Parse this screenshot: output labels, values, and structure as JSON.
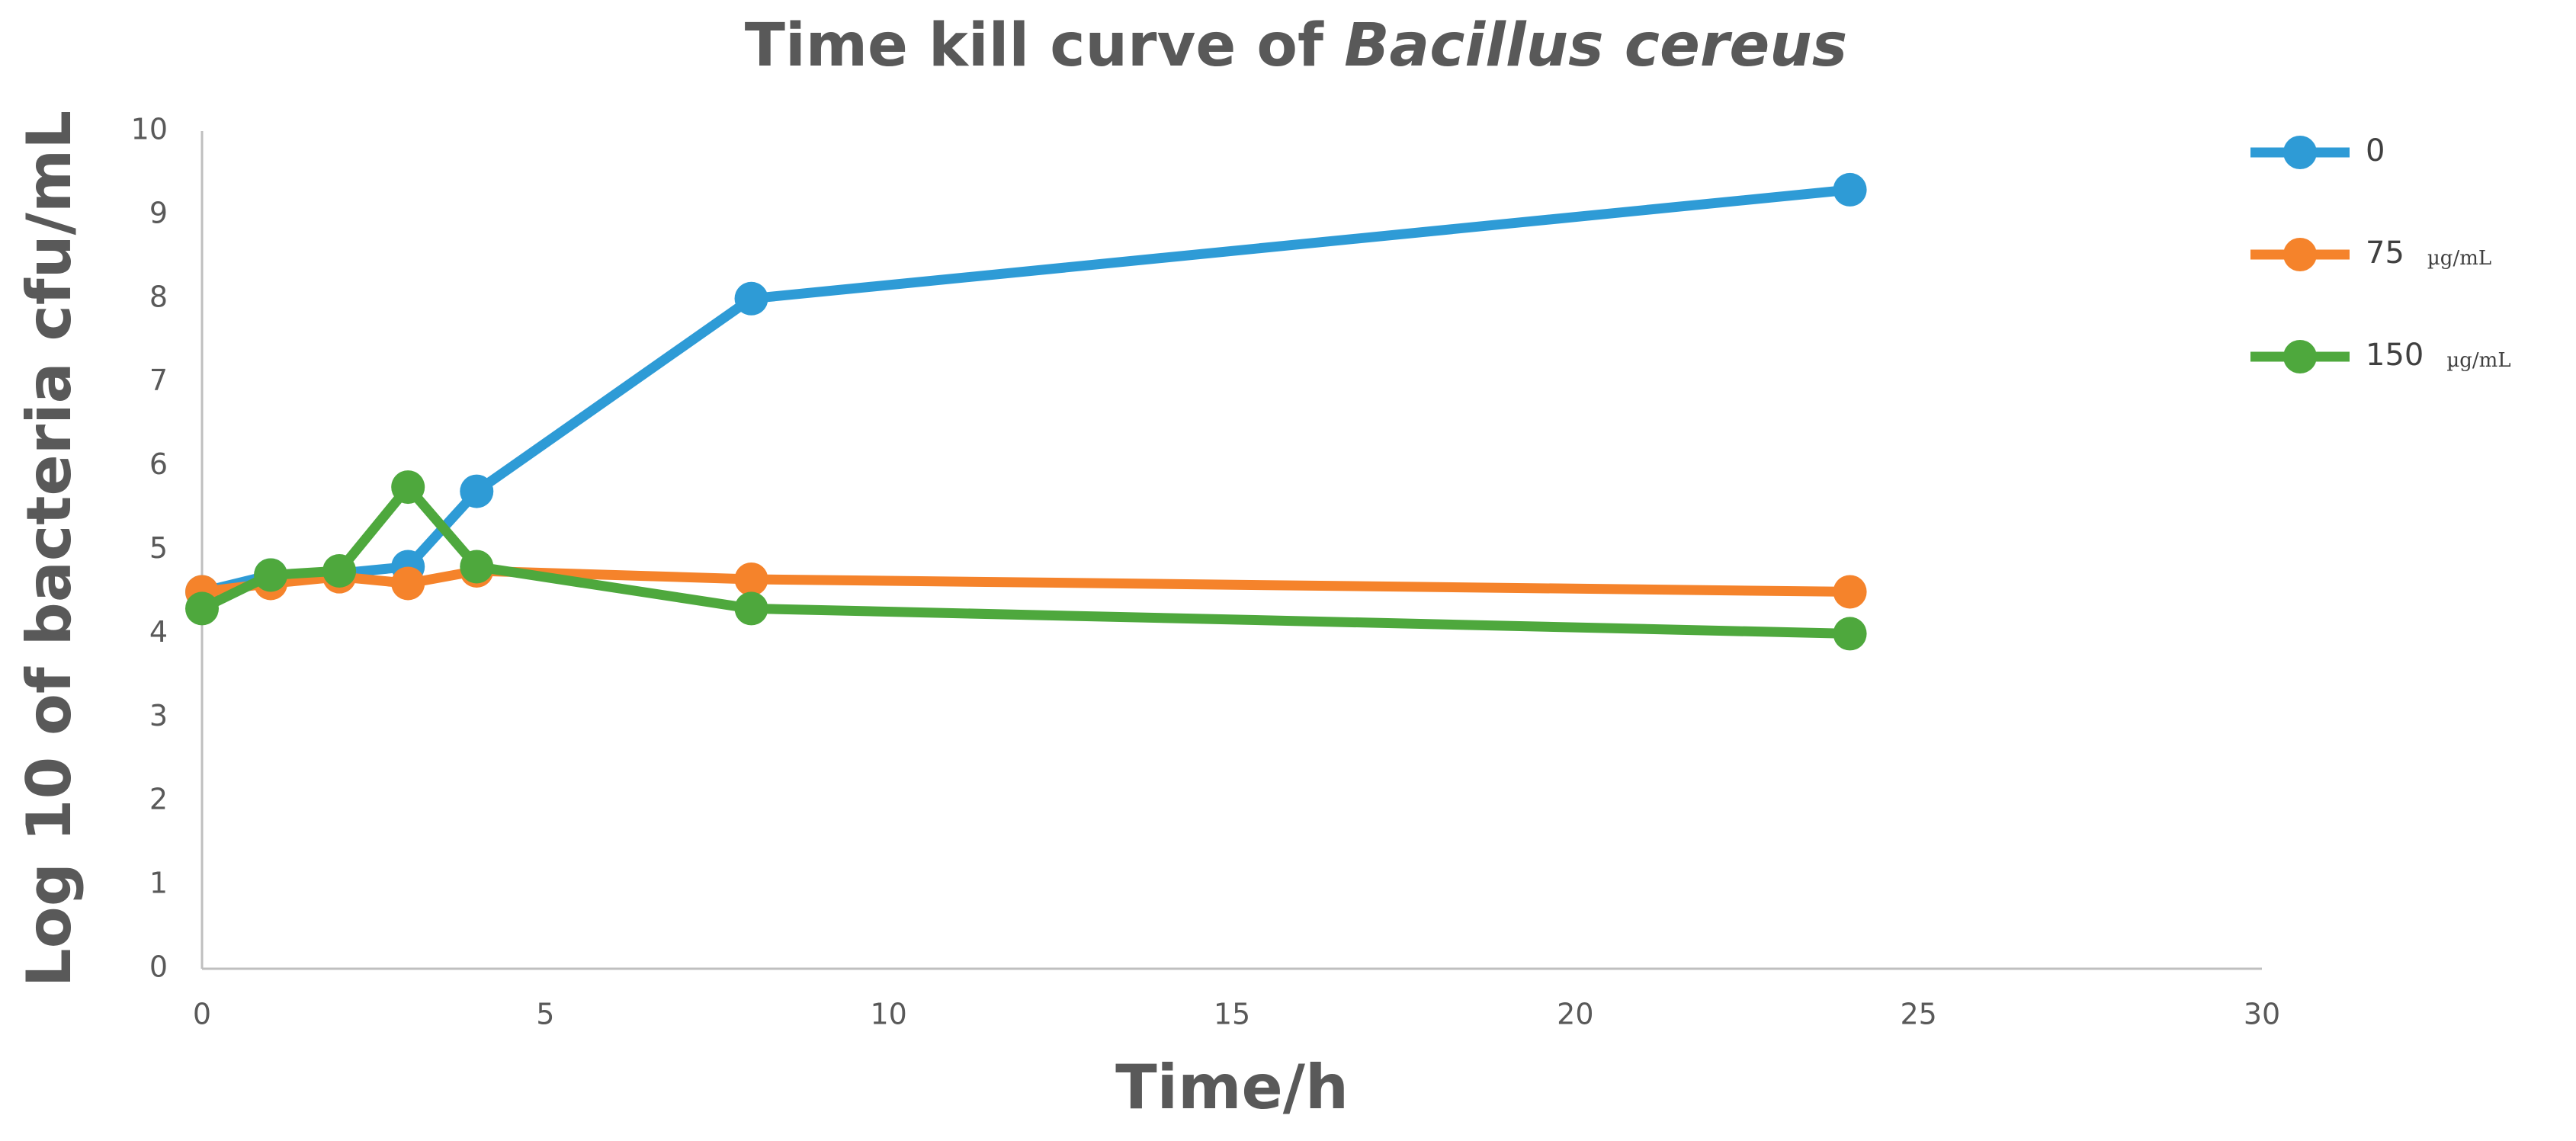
{
  "chart_data": {
    "type": "line",
    "title": "Time kill curve of",
    "title_italic": "Bacillus cereus",
    "x_label": "Time/h",
    "y_label": "Log 10 of bacteria cfu/mL",
    "x": [
      0,
      1,
      2,
      3,
      4,
      8,
      24
    ],
    "series": [
      {
        "name": "0",
        "color": "#2e9bd6",
        "values": [
          4.5,
          4.7,
          4.72,
          4.8,
          5.7,
          8.0,
          9.3
        ]
      },
      {
        "name": "75",
        "unit": "µg/mL",
        "color": "#f5832b",
        "values": [
          4.5,
          4.6,
          4.68,
          4.6,
          4.75,
          4.65,
          4.5
        ]
      },
      {
        "name": "150",
        "unit": "µg/mL",
        "color": "#4ea83d",
        "values": [
          4.3,
          4.7,
          4.75,
          5.75,
          4.8,
          4.3,
          4.0
        ]
      }
    ],
    "xlim": [
      0,
      30
    ],
    "xticks": [
      0,
      5,
      10,
      15,
      20,
      25,
      30
    ],
    "ylim": [
      0,
      10
    ],
    "yticks": [
      0,
      1,
      2,
      3,
      4,
      5,
      6,
      7,
      8,
      9,
      10
    ],
    "grid": false,
    "legend": "right"
  }
}
